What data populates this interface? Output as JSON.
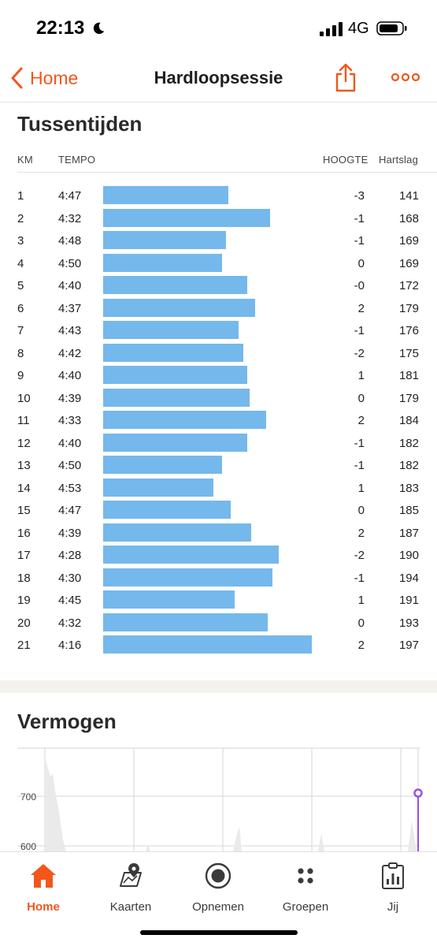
{
  "status_bar": {
    "time": "22:13",
    "network": "4G"
  },
  "nav": {
    "back_label": "Home",
    "title": "Hardloopsessie"
  },
  "splits": {
    "title": "Tussentijden",
    "headers": {
      "km": "KM",
      "pace": "TEMPO",
      "elevation": "HOOGTE",
      "heart_rate": "Hartslag"
    },
    "rows": [
      {
        "km": "1",
        "pace": "4:47",
        "elevation": "-3",
        "heart_rate": "141",
        "bar_fraction": 0.6
      },
      {
        "km": "2",
        "pace": "4:32",
        "elevation": "-1",
        "heart_rate": "168",
        "bar_fraction": 0.8
      },
      {
        "km": "3",
        "pace": "4:48",
        "elevation": "-1",
        "heart_rate": "169",
        "bar_fraction": 0.59
      },
      {
        "km": "4",
        "pace": "4:50",
        "elevation": "0",
        "heart_rate": "169",
        "bar_fraction": 0.57
      },
      {
        "km": "5",
        "pace": "4:40",
        "elevation": "-0",
        "heart_rate": "172",
        "bar_fraction": 0.69
      },
      {
        "km": "6",
        "pace": "4:37",
        "elevation": "2",
        "heart_rate": "179",
        "bar_fraction": 0.73
      },
      {
        "km": "7",
        "pace": "4:43",
        "elevation": "-1",
        "heart_rate": "176",
        "bar_fraction": 0.65
      },
      {
        "km": "8",
        "pace": "4:42",
        "elevation": "-2",
        "heart_rate": "175",
        "bar_fraction": 0.67
      },
      {
        "km": "9",
        "pace": "4:40",
        "elevation": "1",
        "heart_rate": "181",
        "bar_fraction": 0.69
      },
      {
        "km": "10",
        "pace": "4:39",
        "elevation": "0",
        "heart_rate": "179",
        "bar_fraction": 0.7
      },
      {
        "km": "11",
        "pace": "4:33",
        "elevation": "2",
        "heart_rate": "184",
        "bar_fraction": 0.78
      },
      {
        "km": "12",
        "pace": "4:40",
        "elevation": "-1",
        "heart_rate": "182",
        "bar_fraction": 0.69
      },
      {
        "km": "13",
        "pace": "4:50",
        "elevation": "-1",
        "heart_rate": "182",
        "bar_fraction": 0.57
      },
      {
        "km": "14",
        "pace": "4:53",
        "elevation": "1",
        "heart_rate": "183",
        "bar_fraction": 0.53
      },
      {
        "km": "15",
        "pace": "4:47",
        "elevation": "0",
        "heart_rate": "185",
        "bar_fraction": 0.61
      },
      {
        "km": "16",
        "pace": "4:39",
        "elevation": "2",
        "heart_rate": "187",
        "bar_fraction": 0.71
      },
      {
        "km": "17",
        "pace": "4:28",
        "elevation": "-2",
        "heart_rate": "190",
        "bar_fraction": 0.84
      },
      {
        "km": "18",
        "pace": "4:30",
        "elevation": "-1",
        "heart_rate": "194",
        "bar_fraction": 0.81
      },
      {
        "km": "19",
        "pace": "4:45",
        "elevation": "1",
        "heart_rate": "191",
        "bar_fraction": 0.63
      },
      {
        "km": "20",
        "pace": "4:32",
        "elevation": "0",
        "heart_rate": "193",
        "bar_fraction": 0.79
      },
      {
        "km": "21",
        "pace": "4:16",
        "elevation": "2",
        "heart_rate": "197",
        "bar_fraction": 1.0
      }
    ]
  },
  "power": {
    "title": "Vermogen",
    "chart_data": {
      "type": "area",
      "y_ticks": [
        "700",
        "600"
      ],
      "grid": true
    }
  },
  "tabs": [
    {
      "label": "Home",
      "icon": "home-icon",
      "active": true
    },
    {
      "label": "Kaarten",
      "icon": "map-icon",
      "active": false
    },
    {
      "label": "Opnemen",
      "icon": "record-icon",
      "active": false
    },
    {
      "label": "Groepen",
      "icon": "groups-icon",
      "active": false
    },
    {
      "label": "Jij",
      "icon": "profile-icon",
      "active": false
    }
  ],
  "colors": {
    "accent": "#f2561b",
    "bar": "#75b8ec",
    "power_marker": "#9b51e0"
  }
}
